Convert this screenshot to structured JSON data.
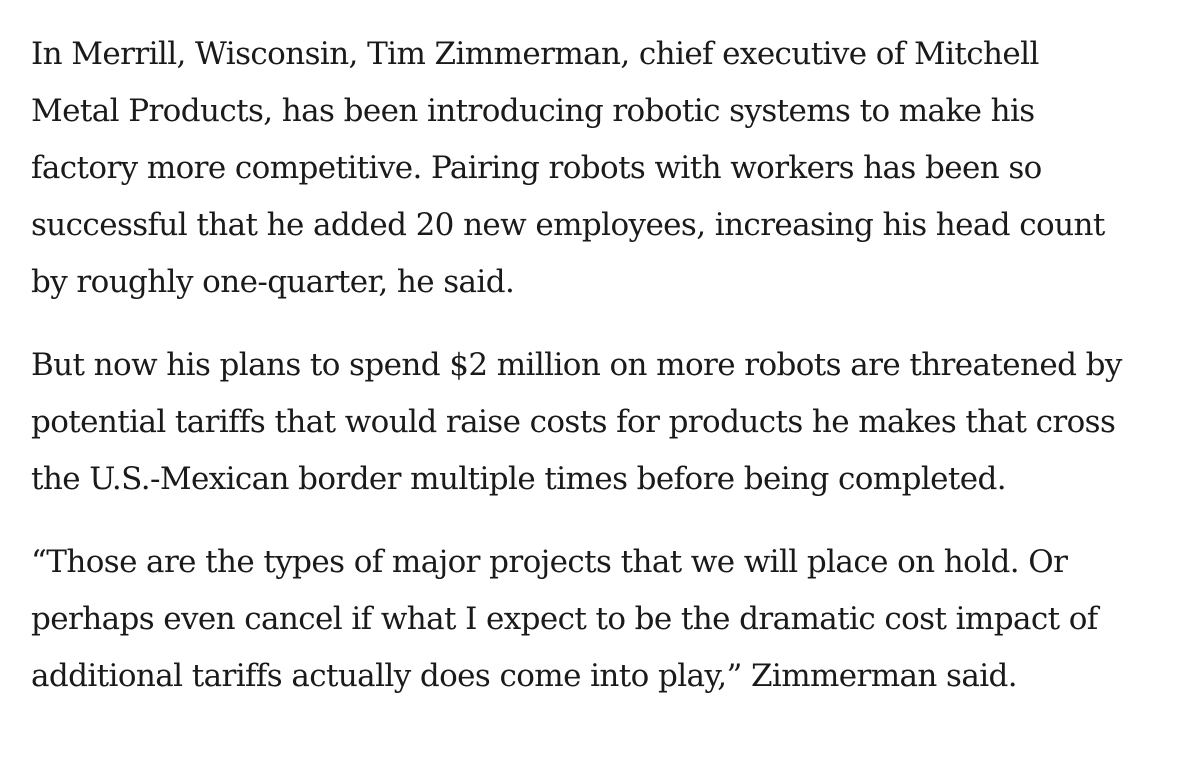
{
  "article": {
    "paragraphs": [
      {
        "lines": [
          "In Merrill, Wisconsin, Tim Zimmerman, chief executive of Mitchell",
          "Metal Products, has been introducing robotic systems to make his",
          "factory more competitive. Pairing robots with workers has been so",
          "successful that he added 20 new employees, increasing his head count",
          "by roughly one-quarter, he said."
        ]
      },
      {
        "lines": [
          "But now his plans to spend $2 million on more robots are threatened by",
          "potential tariffs that would raise costs for products he makes that cross",
          "the U.S.-Mexican border multiple times before being completed."
        ]
      },
      {
        "lines": [
          "“Those are the types of major projects that we will place on hold. Or",
          "perhaps even cancel if what I expect to be the dramatic cost impact of",
          "additional tariffs actually does come into play,” Zimmerman said."
        ]
      }
    ]
  }
}
